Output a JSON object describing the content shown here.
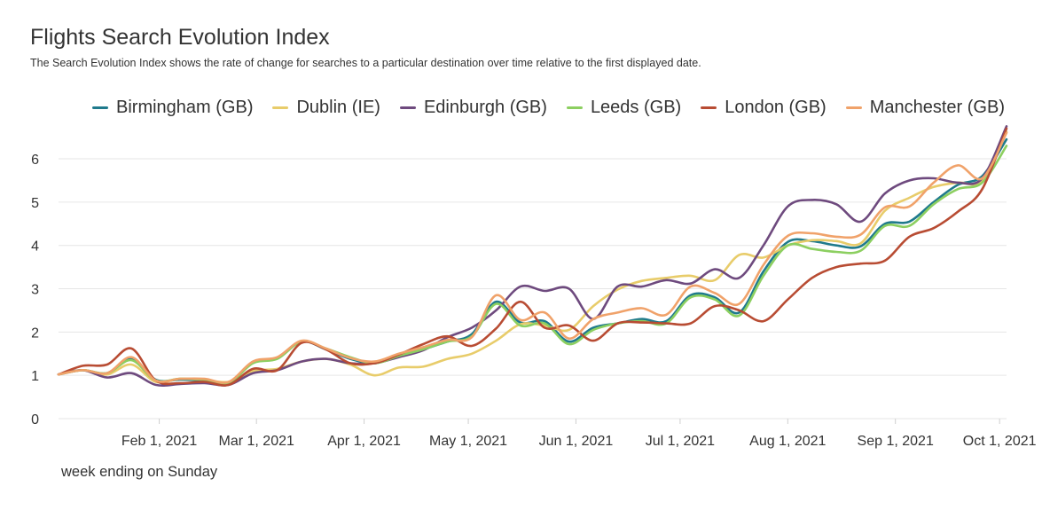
{
  "chart_data": {
    "type": "line",
    "title": "Flights Search Evolution Index",
    "subtitle": "The Search Evolution Index shows the rate of change for searches to a particular destination over time relative to the first displayed date.",
    "xlabel": "week ending on Sunday",
    "ylabel": "",
    "ylim": [
      0,
      6.8
    ],
    "xlim": [
      "2021-01-03",
      "2021-10-03"
    ],
    "yticks": [
      0,
      1,
      2,
      3,
      4,
      5,
      6
    ],
    "xticks": [
      {
        "date": "2021-02-01",
        "label": "Feb 1, 2021"
      },
      {
        "date": "2021-03-01",
        "label": "Mar 1, 2021"
      },
      {
        "date": "2021-04-01",
        "label": "Apr 1, 2021"
      },
      {
        "date": "2021-05-01",
        "label": "May 1, 2021"
      },
      {
        "date": "2021-06-01",
        "label": "Jun 1, 2021"
      },
      {
        "date": "2021-07-01",
        "label": "Jul 1, 2021"
      },
      {
        "date": "2021-08-01",
        "label": "Aug 1, 2021"
      },
      {
        "date": "2021-09-01",
        "label": "Sep 1, 2021"
      },
      {
        "date": "2021-10-01",
        "label": "Oct 1, 2021"
      }
    ],
    "grid": true,
    "legend": "top",
    "x": [
      "2021-01-03",
      "2021-01-10",
      "2021-01-17",
      "2021-01-24",
      "2021-01-31",
      "2021-02-07",
      "2021-02-14",
      "2021-02-21",
      "2021-02-28",
      "2021-03-07",
      "2021-03-14",
      "2021-03-21",
      "2021-03-28",
      "2021-04-04",
      "2021-04-11",
      "2021-04-18",
      "2021-04-25",
      "2021-05-02",
      "2021-05-09",
      "2021-05-16",
      "2021-05-23",
      "2021-05-30",
      "2021-06-06",
      "2021-06-13",
      "2021-06-20",
      "2021-06-27",
      "2021-07-04",
      "2021-07-11",
      "2021-07-18",
      "2021-07-25",
      "2021-08-01",
      "2021-08-08",
      "2021-08-15",
      "2021-08-22",
      "2021-08-29",
      "2021-09-05",
      "2021-09-12",
      "2021-09-19",
      "2021-09-26",
      "2021-10-03"
    ],
    "series": [
      {
        "name": "Birmingham (GB)",
        "color": "#1f7a8c",
        "values": [
          1.02,
          1.12,
          1.05,
          1.38,
          0.9,
          0.9,
          0.88,
          0.82,
          1.3,
          1.4,
          1.78,
          1.6,
          1.38,
          1.28,
          1.45,
          1.6,
          1.78,
          1.95,
          2.7,
          2.22,
          2.25,
          1.78,
          2.1,
          2.2,
          2.3,
          2.25,
          2.85,
          2.8,
          2.45,
          3.4,
          4.08,
          4.1,
          4.0,
          3.98,
          4.5,
          4.55,
          5.0,
          5.4,
          5.6,
          6.45
        ]
      },
      {
        "name": "Dublin (IE)",
        "color": "#e8cc6a",
        "values": [
          1.02,
          1.12,
          1.02,
          1.25,
          0.85,
          0.92,
          0.9,
          0.85,
          1.1,
          1.15,
          1.32,
          1.38,
          1.25,
          1.0,
          1.18,
          1.2,
          1.38,
          1.5,
          1.8,
          2.18,
          2.15,
          2.05,
          2.6,
          2.98,
          3.18,
          3.25,
          3.3,
          3.2,
          3.78,
          3.72,
          4.0,
          4.12,
          4.1,
          4.05,
          4.8,
          5.1,
          5.35,
          5.45,
          5.5,
          6.62
        ]
      },
      {
        "name": "Edinburgh (GB)",
        "color": "#6e4a7e",
        "values": [
          1.02,
          1.12,
          0.95,
          1.05,
          0.78,
          0.8,
          0.82,
          0.78,
          1.05,
          1.12,
          1.32,
          1.38,
          1.28,
          1.28,
          1.42,
          1.58,
          1.88,
          2.1,
          2.5,
          3.05,
          2.95,
          3.0,
          2.3,
          3.05,
          3.05,
          3.2,
          3.12,
          3.45,
          3.25,
          4.0,
          4.9,
          5.05,
          4.95,
          4.55,
          5.2,
          5.5,
          5.55,
          5.45,
          5.55,
          6.75
        ]
      },
      {
        "name": "Leeds (GB)",
        "color": "#8ccf60",
        "values": [
          1.02,
          1.12,
          1.05,
          1.35,
          0.88,
          0.92,
          0.9,
          0.82,
          1.28,
          1.38,
          1.78,
          1.62,
          1.42,
          1.28,
          1.45,
          1.6,
          1.78,
          1.9,
          2.65,
          2.15,
          2.2,
          1.72,
          2.05,
          2.2,
          2.25,
          2.2,
          2.8,
          2.75,
          2.38,
          3.3,
          4.0,
          3.92,
          3.85,
          3.88,
          4.45,
          4.45,
          4.95,
          5.3,
          5.45,
          6.3
        ]
      },
      {
        "name": "London (GB)",
        "color": "#b84c33",
        "values": [
          1.02,
          1.22,
          1.25,
          1.62,
          0.88,
          0.82,
          0.85,
          0.78,
          1.15,
          1.12,
          1.75,
          1.6,
          1.28,
          1.28,
          1.48,
          1.72,
          1.9,
          1.68,
          2.08,
          2.7,
          2.1,
          2.15,
          1.8,
          2.2,
          2.22,
          2.2,
          2.2,
          2.6,
          2.5,
          2.25,
          2.75,
          3.25,
          3.5,
          3.58,
          3.65,
          4.2,
          4.4,
          4.78,
          5.3,
          6.7
        ]
      },
      {
        "name": "Manchester (GB)",
        "color": "#f0a26a",
        "values": [
          1.02,
          1.12,
          1.05,
          1.42,
          0.88,
          0.92,
          0.92,
          0.85,
          1.32,
          1.42,
          1.8,
          1.62,
          1.4,
          1.32,
          1.5,
          1.65,
          1.82,
          1.88,
          2.85,
          2.28,
          2.45,
          1.85,
          2.3,
          2.45,
          2.55,
          2.4,
          3.05,
          2.9,
          2.65,
          3.55,
          4.22,
          4.28,
          4.2,
          4.25,
          4.88,
          4.9,
          5.45,
          5.85,
          5.55,
          6.6
        ]
      }
    ]
  }
}
